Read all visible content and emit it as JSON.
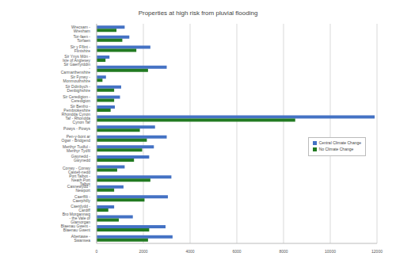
{
  "chart_data": {
    "type": "bar",
    "title": "Properties at high risk from pluvial flooding",
    "orientation": "horizontal",
    "categories": [
      "Wrecsam - Wrexham",
      "Tor-faen - Torfaen",
      "Sir y Fflint - Flintshire",
      "Sir Ynys Môn - Isle of Anglesey",
      "Sir Gaerfyrddin - Carmarthenshire",
      "Sir Fynwy - Monmouthshire",
      "Sir Ddinbych - Denbighshire",
      "Sir Ceredigion - Ceredigion",
      "Sir Benfro - Pembrokeshire",
      "Rhondda Cynon Taf - Rhondda Cynon Taf",
      "Powys - Powys",
      "Pen-y-bont ar Ogwr - Bridgend",
      "Merthyr Tudful - Merthyr Tydfil",
      "Gwynedd - Gwynedd",
      "Conwy - Conwy",
      "Castell-nedd Port Talbot - Neath Port Talbot",
      "Casnewydd - Newport",
      "Caerffili - Caerphilly",
      "Caerdydd - Cardiff",
      "Bro Morgannwg - the Vale of Glamorgan",
      "Blaenau Gwent - Blaenau Gwent",
      "Abertawe - Swansea"
    ],
    "series": [
      {
        "name": "Central Climate Change",
        "color": "#4472c4",
        "values": [
          1200,
          1400,
          2300,
          550,
          3000,
          400,
          1050,
          1000,
          780,
          11900,
          2500,
          3000,
          2450,
          2250,
          1200,
          3200,
          1150,
          3050,
          750,
          1550,
          2950,
          3250
        ]
      },
      {
        "name": "No Climate Change",
        "color": "#217a21",
        "values": [
          850,
          1100,
          1700,
          380,
          2200,
          250,
          750,
          750,
          600,
          8500,
          1850,
          2150,
          1950,
          1600,
          880,
          2300,
          750,
          2050,
          500,
          950,
          2250,
          2200
        ]
      }
    ],
    "xlim": [
      0,
      12000
    ],
    "xticks": [
      0,
      2000,
      4000,
      6000,
      8000,
      10000,
      12000
    ],
    "grid": true,
    "legend": "center right"
  }
}
